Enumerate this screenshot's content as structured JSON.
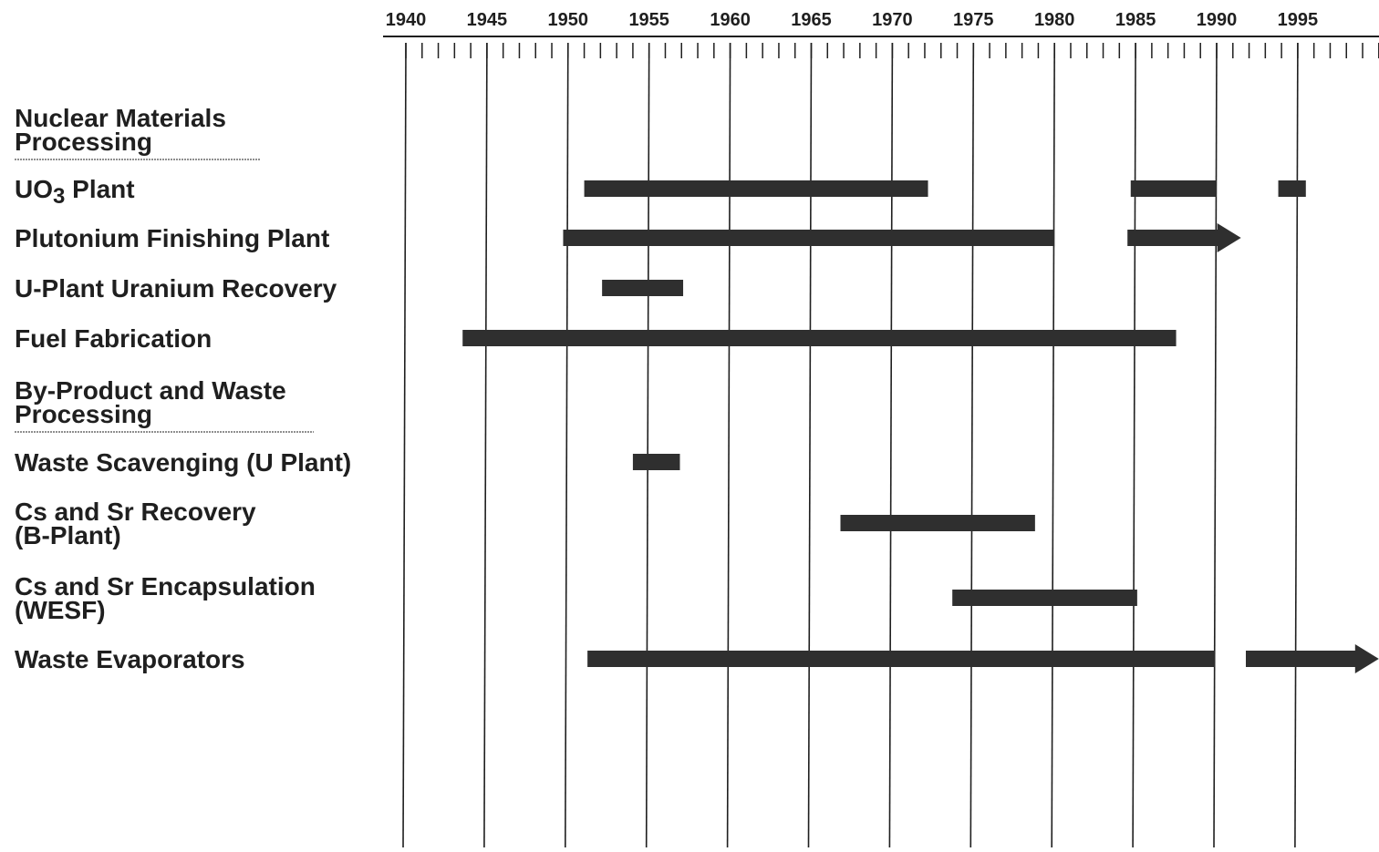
{
  "chart_data": {
    "type": "gantt",
    "title": "",
    "xlabel": "",
    "ylabel": "",
    "x_axis": {
      "min": 1940,
      "max": 2000,
      "major_ticks": [
        1940,
        1945,
        1950,
        1955,
        1960,
        1965,
        1970,
        1975,
        1980,
        1985,
        1990,
        1995
      ],
      "minor_step": 1,
      "position": "top",
      "grid": "vertical lines at major ticks"
    },
    "colors": {
      "bar": "#2f2f2f",
      "grid": "#1f1f1f",
      "text": "#1f1f1f",
      "background": "#ffffff"
    },
    "rows": [
      {
        "label_lines": [
          "Nuclear Materials",
          "Processing"
        ],
        "kind": "section",
        "bars": []
      },
      {
        "label_lines": [
          "UO3 Plant"
        ],
        "kind": "item",
        "bars": [
          {
            "start": 1951,
            "end": 1972.2
          },
          {
            "start": 1984.7,
            "end": 1990
          },
          {
            "start": 1993.8,
            "end": 1995.5
          }
        ]
      },
      {
        "label_lines": [
          "Plutonium Finishing Plant"
        ],
        "kind": "item",
        "bars": [
          {
            "start": 1949.7,
            "end": 1980
          },
          {
            "start": 1984.5,
            "end": 1991.5,
            "arrow": true
          }
        ]
      },
      {
        "label_lines": [
          "U-Plant Uranium Recovery"
        ],
        "kind": "item",
        "bars": [
          {
            "start": 1952.1,
            "end": 1957.1
          }
        ]
      },
      {
        "label_lines": [
          "Fuel Fabrication"
        ],
        "kind": "item",
        "bars": [
          {
            "start": 1943.5,
            "end": 1987.5
          }
        ]
      },
      {
        "label_lines": [
          "By-Product and Waste",
          "Processing"
        ],
        "kind": "section",
        "bars": []
      },
      {
        "label_lines": [
          "Waste Scavenging (U Plant)"
        ],
        "kind": "item",
        "bars": [
          {
            "start": 1954,
            "end": 1956.9
          }
        ]
      },
      {
        "label_lines": [
          "Cs and Sr Recovery",
          "(B-Plant)"
        ],
        "kind": "item",
        "bars": [
          {
            "start": 1966.8,
            "end": 1978.8
          }
        ]
      },
      {
        "label_lines": [
          "Cs and Sr Encapsulation",
          "(WESF)"
        ],
        "kind": "item",
        "bars": [
          {
            "start": 1973.7,
            "end": 1985.1
          }
        ]
      },
      {
        "label_lines": [
          "Waste Evaporators"
        ],
        "kind": "item",
        "bars": [
          {
            "start": 1951.2,
            "end": 1989.9
          },
          {
            "start": 1991.8,
            "end": 2000,
            "arrow": true
          }
        ]
      }
    ]
  }
}
